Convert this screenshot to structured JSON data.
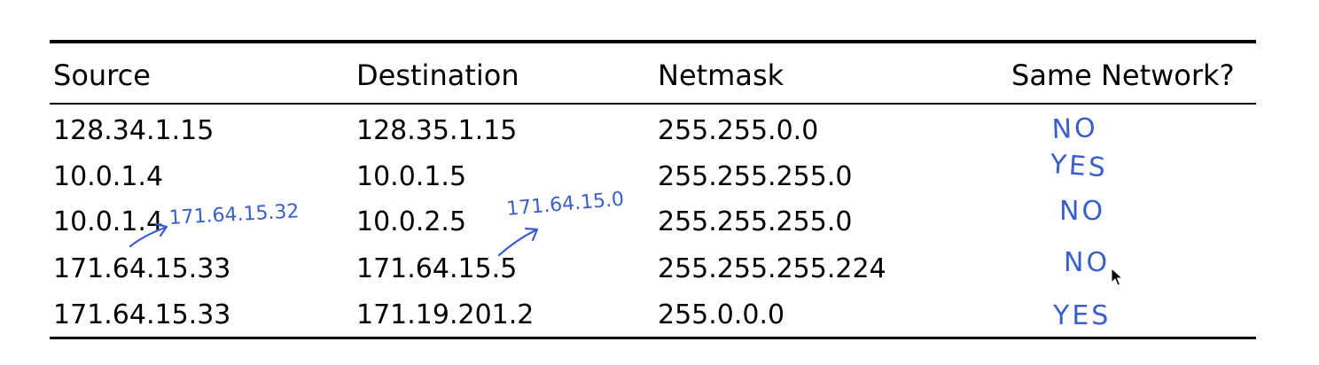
{
  "table": {
    "headers": {
      "source": "Source",
      "destination": "Destination",
      "netmask": "Netmask",
      "same_network": "Same Network?"
    },
    "rows": [
      {
        "source": "128.34.1.15",
        "destination": "128.35.1.15",
        "netmask": "255.255.0.0"
      },
      {
        "source": "10.0.1.4",
        "destination": "10.0.1.5",
        "netmask": "255.255.255.0"
      },
      {
        "source": "10.0.1.4",
        "destination": "10.0.2.5",
        "netmask": "255.255.255.0"
      },
      {
        "source": "171.64.15.33",
        "destination": "171.64.15.5",
        "netmask": "255.255.255.224"
      },
      {
        "source": "171.64.15.33",
        "destination": "171.19.201.2",
        "netmask": "255.0.0.0"
      }
    ]
  },
  "handwriting": {
    "answers": [
      "NO",
      "YES",
      "NO",
      "NO",
      "YES"
    ],
    "notes": {
      "row2_source": "171.64.15.32",
      "row2_destination": "171.64.15.0"
    }
  },
  "colors": {
    "text": "#000000",
    "rule": "#000000",
    "ink": "#3b5fc8"
  }
}
